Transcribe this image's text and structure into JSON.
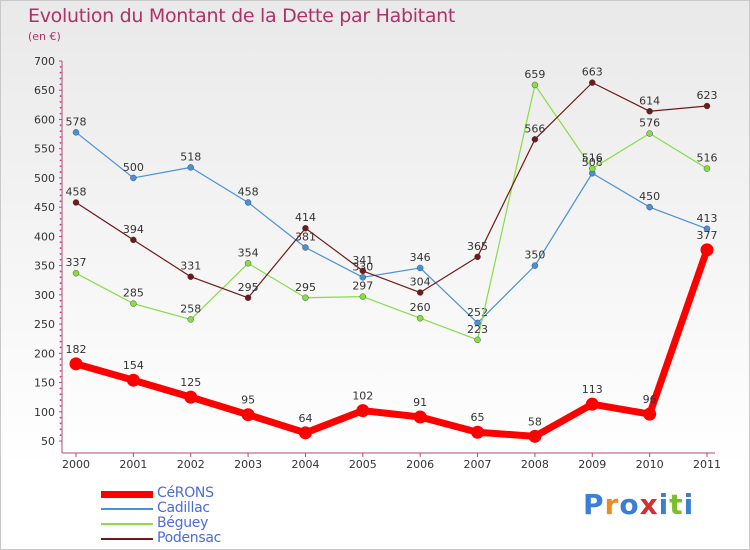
{
  "chart_data": {
    "type": "line",
    "title": "Evolution du Montant de la Dette par Habitant",
    "subtitle": "(en €)",
    "categories": [
      "2000",
      "2001",
      "2002",
      "2003",
      "2004",
      "2005",
      "2006",
      "2007",
      "2008",
      "2009",
      "2010",
      "2011"
    ],
    "ylim": [
      50,
      700
    ],
    "yticks": [
      50,
      100,
      150,
      200,
      250,
      300,
      350,
      400,
      450,
      500,
      550,
      600,
      650,
      700
    ],
    "grid": false,
    "legend_position": "bottom-left",
    "series": [
      {
        "name": "CéRONS",
        "color": "#ff0000",
        "bold": true,
        "values": [
          182,
          154,
          125,
          95,
          64,
          102,
          91,
          65,
          58,
          113,
          96,
          377
        ]
      },
      {
        "name": "Cadillac",
        "color": "#4a90d9",
        "values": [
          578,
          500,
          518,
          458,
          381,
          330,
          346,
          252,
          350,
          508,
          450,
          413
        ]
      },
      {
        "name": "Béguey",
        "color": "#88dd44",
        "values": [
          337,
          285,
          258,
          354,
          295,
          297,
          260,
          223,
          659,
          516,
          576,
          516
        ]
      },
      {
        "name": "Podensac",
        "color": "#6e1a1a",
        "values": [
          458,
          394,
          331,
          295,
          414,
          341,
          304,
          365,
          566,
          663,
          614,
          623
        ]
      }
    ]
  },
  "brand": {
    "letters": [
      "P",
      "r",
      "o",
      "x",
      "i",
      "t",
      "i"
    ],
    "colors": [
      "#3a7fd5",
      "#f08a1c",
      "#3a7fd5",
      "#d13030",
      "#3a7fd5",
      "#7abf2a",
      "#3a7fd5"
    ]
  }
}
